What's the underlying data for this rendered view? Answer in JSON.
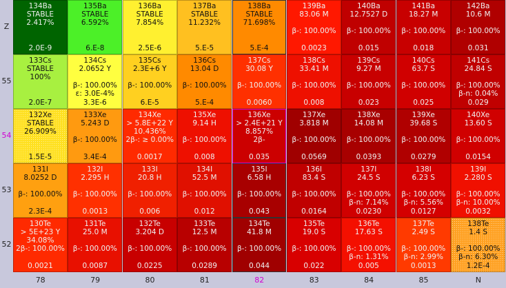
{
  "z_axis": [
    {
      "label": "Z",
      "highlight": false
    },
    {
      "label": "55",
      "highlight": false
    },
    {
      "label": "54",
      "highlight": true
    },
    {
      "label": "53",
      "highlight": false
    },
    {
      "label": "52",
      "highlight": false
    }
  ],
  "n_axis": [
    {
      "label": "78",
      "highlight": false
    },
    {
      "label": "79",
      "highlight": false
    },
    {
      "label": "80",
      "highlight": false
    },
    {
      "label": "81",
      "highlight": false
    },
    {
      "label": "82",
      "highlight": true
    },
    {
      "label": "83",
      "highlight": false
    },
    {
      "label": "84",
      "highlight": false
    },
    {
      "label": "85",
      "highlight": false
    },
    {
      "label": "N",
      "highlight": false
    }
  ],
  "rows": [
    [
      {
        "lines": [
          "134Ba",
          "STABLE",
          "2.417%"
        ],
        "bottom": "2.0E-9",
        "bg": "#006400",
        "dark": false
      },
      {
        "lines": [
          "135Ba",
          "STABLE",
          "6.592%"
        ],
        "bottom": "6.E-8",
        "bg": "#4cf028",
        "dark": true
      },
      {
        "lines": [
          "136Ba",
          "STABLE",
          "7.854%"
        ],
        "bottom": "2.5E-6",
        "bg": "#fff030",
        "dark": true
      },
      {
        "lines": [
          "137Ba",
          "STABLE",
          "11.232%"
        ],
        "bottom": "5.E-5",
        "bg": "#ffc020",
        "dark": true
      },
      {
        "lines": [
          "138Ba",
          "STABLE",
          "71.698%"
        ],
        "bottom": "5.E-4",
        "bg": "#ff8a00",
        "dark": true,
        "border": "sel"
      },
      {
        "lines": [
          "139Ba",
          "83.06 M",
          "",
          "β-: 100.00%"
        ],
        "bottom": "0.0023",
        "bg": "#ff1800",
        "dark": false
      },
      {
        "lines": [
          "140Ba",
          "12.7527 D",
          "",
          "β-: 100.00%"
        ],
        "bottom": "0.015",
        "bg": "#c00000",
        "dark": false
      },
      {
        "lines": [
          "141Ba",
          "18.27 M",
          "",
          "β-: 100.00%"
        ],
        "bottom": "0.018",
        "bg": "#c80000",
        "dark": false
      },
      {
        "lines": [
          "142Ba",
          "10.6 M",
          "",
          "β-: 100.00%"
        ],
        "bottom": "0.031",
        "bg": "#b00000",
        "dark": false
      }
    ],
    [
      {
        "lines": [
          "133Cs",
          "STABLE",
          "100%"
        ],
        "bottom": "2.0E-7",
        "bg": "#a8f040",
        "dark": true
      },
      {
        "lines": [
          "134Cs",
          "2.0652 Y",
          "",
          "β-: 100.00%",
          "ε: 3.0E-4%"
        ],
        "bottom": "3.3E-6",
        "bg": "#ffff40",
        "dark": true
      },
      {
        "lines": [
          "135Cs",
          "2.3E+6 Y",
          "",
          "β-: 100.00%"
        ],
        "bottom": "6.E-5",
        "bg": "#ffd020",
        "dark": true
      },
      {
        "lines": [
          "136Cs",
          "13.04 D",
          "",
          "β-: 100.00%"
        ],
        "bottom": "5.E-4",
        "bg": "#ff8a00",
        "dark": true
      },
      {
        "lines": [
          "137Cs",
          "30.08 Y",
          "",
          "β-: 100.00%"
        ],
        "bottom": "0.0060",
        "bg": "#ff3000",
        "dark": false
      },
      {
        "lines": [
          "138Cs",
          "33.41 M",
          "",
          "β-: 100.00%"
        ],
        "bottom": "0.008",
        "bg": "#ee1000",
        "dark": false
      },
      {
        "lines": [
          "139Cs",
          "9.27 M",
          "",
          "β-: 100.00%"
        ],
        "bottom": "0.023",
        "bg": "#c80000",
        "dark": false
      },
      {
        "lines": [
          "140Cs",
          "63.7 S",
          "",
          "β-: 100.00%"
        ],
        "bottom": "0.025",
        "bg": "#d00000",
        "dark": false
      },
      {
        "lines": [
          "141Cs",
          "24.84 S",
          "",
          "β-: 100.00%",
          "β-n: 0.04%"
        ],
        "bottom": "0.029",
        "bg": "#c00000",
        "dark": false
      }
    ],
    [
      {
        "lines": [
          "132Xe",
          "STABLE",
          "26.909%"
        ],
        "bottom": "1.5E-5",
        "bg": "#ffe020",
        "dark": true,
        "dots": true
      },
      {
        "lines": [
          "133Xe",
          "5.243 D",
          "",
          "β-: 100.00%"
        ],
        "bottom": "3.4E-4",
        "bg": "#ff9a10",
        "dark": true
      },
      {
        "lines": [
          "134Xe",
          "> 5.8E+22 Y",
          "10.436%",
          "2β-: ≥ 0.00%"
        ],
        "bottom": "0.0017",
        "bg": "#ff2a00",
        "dark": false
      },
      {
        "lines": [
          "135Xe",
          "9.14 H",
          "",
          "β-: 100.00%"
        ],
        "bottom": "0.008",
        "bg": "#ee1000",
        "dark": false
      },
      {
        "lines": [
          "136Xe",
          "> 2.4E+21 Y",
          "8.857%",
          "2β-"
        ],
        "bottom": "0.035",
        "bg": "#cc0000",
        "dark": false,
        "border": "hl"
      },
      {
        "lines": [
          "137Xe",
          "3.818 M",
          "",
          "β-: 100.00%"
        ],
        "bottom": "0.0569",
        "bg": "#a00000",
        "dark": false
      },
      {
        "lines": [
          "138Xe",
          "14.08 M",
          "",
          "β-: 100.00%"
        ],
        "bottom": "0.0393",
        "bg": "#a80000",
        "dark": false
      },
      {
        "lines": [
          "139Xe",
          "39.68 S",
          "",
          "β-: 100.00%"
        ],
        "bottom": "0.0279",
        "bg": "#b00000",
        "dark": false
      },
      {
        "lines": [
          "140Xe",
          "13.60 S",
          "",
          "β-: 100.00%"
        ],
        "bottom": "0.0154",
        "bg": "#d00000",
        "dark": false
      }
    ],
    [
      {
        "lines": [
          "131I",
          "8.0252 D",
          "",
          "β-: 100.00%"
        ],
        "bottom": "2.3E-4",
        "bg": "#ffa010",
        "dark": true
      },
      {
        "lines": [
          "132I",
          "2.295 H",
          "",
          "β-: 100.00%"
        ],
        "bottom": "0.0013",
        "bg": "#ff3000",
        "dark": false
      },
      {
        "lines": [
          "133I",
          "20.8 H",
          "",
          "β-: 100.00%"
        ],
        "bottom": "0.006",
        "bg": "#f02000",
        "dark": false
      },
      {
        "lines": [
          "134I",
          "52.5 M",
          "",
          "β-: 100.00%"
        ],
        "bottom": "0.012",
        "bg": "#e01000",
        "dark": false
      },
      {
        "lines": [
          "135I",
          "6.58 H",
          "",
          "β-: 100.00%"
        ],
        "bottom": "0.043",
        "bg": "#a80000",
        "dark": false,
        "border": "sel"
      },
      {
        "lines": [
          "136I",
          "83.4 S",
          "",
          "β-: 100.00%"
        ],
        "bottom": "0.0164",
        "bg": "#c00000",
        "dark": false
      },
      {
        "lines": [
          "137I",
          "24.5 S",
          "",
          "β-: 100.00%",
          "β-n: 7.14%"
        ],
        "bottom": "0.0230",
        "bg": "#d00000",
        "dark": false
      },
      {
        "lines": [
          "138I",
          "6.23 S",
          "",
          "β-: 100.00%",
          "β-n: 5.56%"
        ],
        "bottom": "0.0127",
        "bg": "#d40000",
        "dark": false
      },
      {
        "lines": [
          "139I",
          "2.280 S",
          "",
          "β-: 100.00%",
          "β-n: 10.00%"
        ],
        "bottom": "0.0032",
        "bg": "#f01000",
        "dark": false
      }
    ],
    [
      {
        "lines": [
          "130Te",
          "> 5E+23 Y",
          "34.08%",
          "2β-: 100.00%"
        ],
        "bottom": "0.0021",
        "bg": "#ff2a00",
        "dark": false
      },
      {
        "lines": [
          "131Te",
          "25.0 M",
          "",
          "β-: 100.00%"
        ],
        "bottom": "0.0087",
        "bg": "#e81000",
        "dark": false
      },
      {
        "lines": [
          "132Te",
          "3.204 D",
          "",
          "β-: 100.00%"
        ],
        "bottom": "0.0225",
        "bg": "#c80000",
        "dark": false
      },
      {
        "lines": [
          "133Te",
          "12.5 M",
          "",
          "β-: 100.00%"
        ],
        "bottom": "0.0289",
        "bg": "#b80000",
        "dark": false
      },
      {
        "lines": [
          "134Te",
          "41.8 M",
          "",
          "β-: 100.00%"
        ],
        "bottom": "0.044",
        "bg": "#a00000",
        "dark": false,
        "border": "sel"
      },
      {
        "lines": [
          "135Te",
          "19.0 S",
          "",
          "β-: 100.00%"
        ],
        "bottom": "0.022",
        "bg": "#d80000",
        "dark": false
      },
      {
        "lines": [
          "136Te",
          "17.63 S",
          "",
          "β-: 100.00%",
          "β-n: 1.31%"
        ],
        "bottom": "0.005",
        "bg": "#f41000",
        "dark": false
      },
      {
        "lines": [
          "137Te",
          "2.49 S",
          "",
          "β-: 100.00%",
          "β-n: 2.99%"
        ],
        "bottom": "0.0013",
        "bg": "#ff3a00",
        "dark": false
      },
      {
        "lines": [
          "138Te",
          "1.4 S",
          "",
          "β-: 100.00%",
          "β-n: 6.30%"
        ],
        "bottom": "1.2E-4",
        "bg": "#ffa020",
        "dark": true,
        "dots": true
      }
    ]
  ]
}
